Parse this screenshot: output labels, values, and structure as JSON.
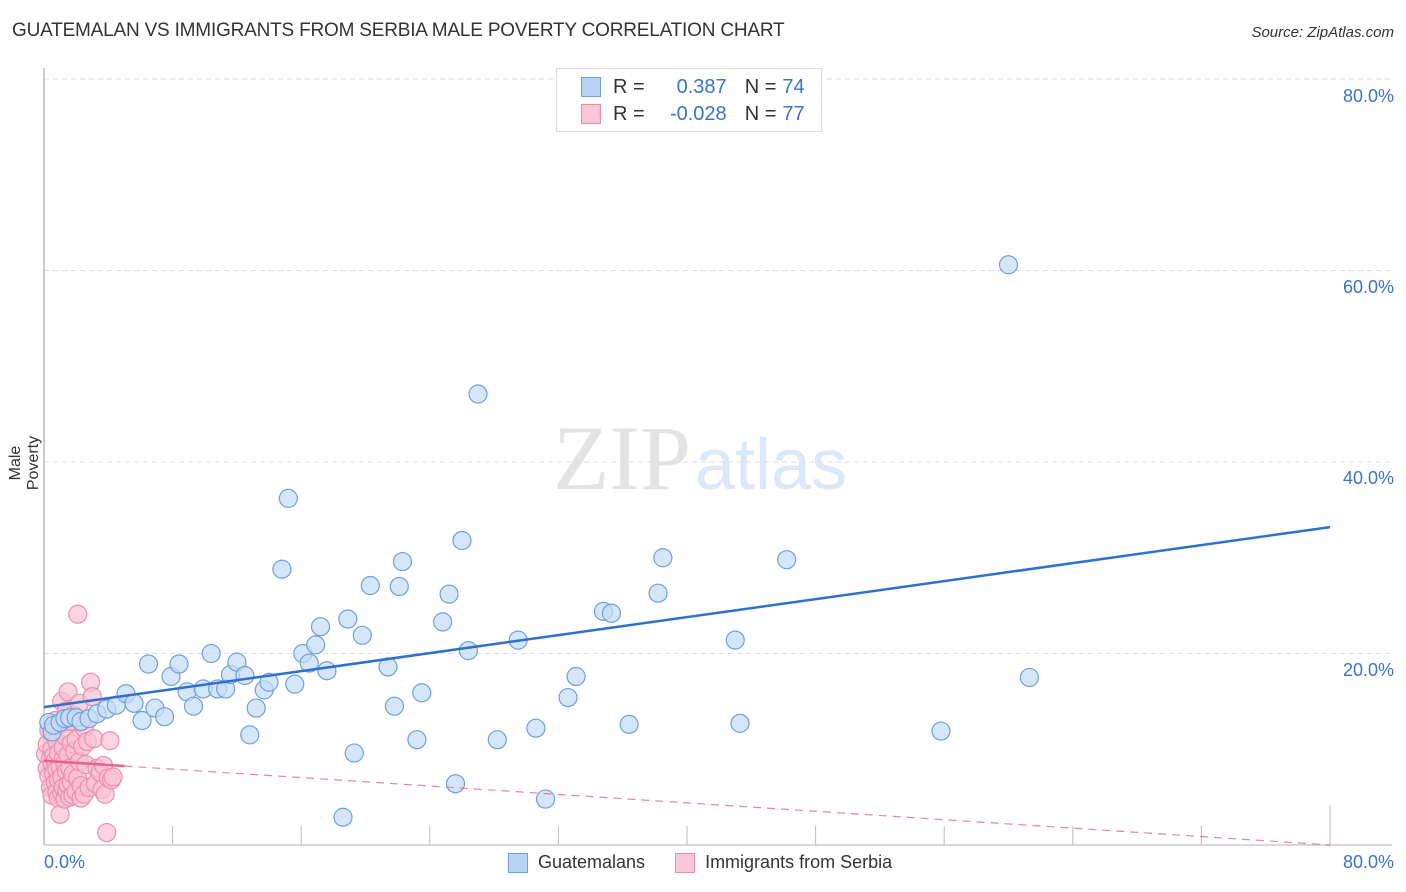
{
  "header": {
    "title": "GUATEMALAN VS IMMIGRANTS FROM SERBIA MALE POVERTY CORRELATION CHART",
    "source": "Source: ZipAtlas.com"
  },
  "watermark": {
    "zip": "ZIP",
    "atlas": "atlas"
  },
  "legend_top": {
    "rows": [
      {
        "r_label": "R =",
        "r_value": "0.387",
        "n_label": "N =",
        "n_value": "74",
        "color": "#b9d3f5",
        "border": "#6f9fde"
      },
      {
        "r_label": "R =",
        "r_value": "-0.028",
        "n_label": "N =",
        "n_value": "77",
        "color": "#fbc6d6",
        "border": "#e98fac"
      }
    ]
  },
  "legend_bottom": [
    {
      "label": "Guatemalans",
      "color": "#b9d3f5",
      "border": "#6f9fde"
    },
    {
      "label": "Immigrants from Serbia",
      "color": "#fbc6d6",
      "border": "#e98fac"
    }
  ],
  "axes": {
    "y_title": "Male Poverty",
    "y_ticks": [
      "80.0%",
      "60.0%",
      "40.0%",
      "20.0%"
    ],
    "x_min_label": "0.0%",
    "x_max_label": "80.0%"
  },
  "colors": {
    "blue_fill": "#c5dbf6",
    "blue_stroke": "#6f9fde",
    "blue_line": "#2e6fd2",
    "pink_fill": "#f9c2d3",
    "pink_stroke": "#ea8fae",
    "pink_line": "#e8608d",
    "axis_label": "#3b73c8",
    "grid": "#dddddd"
  },
  "chart_data": {
    "type": "scatter",
    "title": "GUATEMALAN VS IMMIGRANTS FROM SERBIA MALE POVERTY CORRELATION CHART",
    "xlabel": "",
    "ylabel": "Male Poverty",
    "xlim": [
      0,
      80
    ],
    "ylim": [
      0,
      80
    ],
    "x_tick_labels": [
      "0.0%",
      "80.0%"
    ],
    "y_tick_labels": [
      "20.0%",
      "40.0%",
      "60.0%",
      "80.0%"
    ],
    "grid": "horizontal dashed",
    "legend_position": "bottom",
    "series": [
      {
        "name": "Guatemalans",
        "R": 0.387,
        "N": 74,
        "trend": {
          "x": [
            0,
            80
          ],
          "y": [
            14.4,
            33.2
          ]
        },
        "points": [
          [
            0.3,
            12.8
          ],
          [
            0.5,
            11.8
          ],
          [
            0.6,
            12.5
          ],
          [
            1.0,
            12.8
          ],
          [
            1.3,
            13.2
          ],
          [
            1.6,
            13.3
          ],
          [
            2.0,
            13.3
          ],
          [
            2.3,
            12.9
          ],
          [
            2.8,
            13.2
          ],
          [
            3.3,
            13.7
          ],
          [
            3.9,
            14.2
          ],
          [
            4.5,
            14.6
          ],
          [
            5.1,
            15.8
          ],
          [
            5.6,
            14.8
          ],
          [
            6.1,
            13.0
          ],
          [
            6.5,
            18.9
          ],
          [
            6.9,
            14.3
          ],
          [
            7.5,
            13.4
          ],
          [
            7.9,
            17.6
          ],
          [
            8.4,
            18.9
          ],
          [
            8.9,
            16.0
          ],
          [
            9.3,
            14.5
          ],
          [
            9.9,
            16.3
          ],
          [
            10.4,
            20.0
          ],
          [
            10.8,
            16.3
          ],
          [
            11.3,
            16.3
          ],
          [
            11.6,
            17.8
          ],
          [
            12.0,
            19.1
          ],
          [
            12.5,
            17.7
          ],
          [
            12.8,
            11.5
          ],
          [
            13.2,
            14.3
          ],
          [
            13.7,
            16.2
          ],
          [
            14.0,
            17.0
          ],
          [
            14.8,
            28.8
          ],
          [
            15.2,
            36.2
          ],
          [
            15.6,
            16.8
          ],
          [
            16.1,
            20.0
          ],
          [
            16.5,
            19.0
          ],
          [
            16.9,
            20.9
          ],
          [
            17.2,
            22.8
          ],
          [
            17.6,
            18.2
          ],
          [
            18.6,
            2.9
          ],
          [
            18.9,
            23.6
          ],
          [
            19.3,
            9.6
          ],
          [
            19.8,
            21.9
          ],
          [
            20.3,
            27.1
          ],
          [
            21.4,
            18.6
          ],
          [
            21.8,
            14.5
          ],
          [
            22.1,
            27.0
          ],
          [
            22.3,
            29.6
          ],
          [
            23.2,
            11.0
          ],
          [
            23.5,
            15.9
          ],
          [
            24.8,
            23.3
          ],
          [
            25.2,
            26.2
          ],
          [
            25.6,
            6.4
          ],
          [
            26.0,
            31.8
          ],
          [
            26.4,
            20.3
          ],
          [
            27.0,
            47.1
          ],
          [
            28.2,
            11.0
          ],
          [
            29.5,
            21.4
          ],
          [
            30.6,
            12.2
          ],
          [
            31.2,
            4.8
          ],
          [
            32.6,
            15.4
          ],
          [
            33.1,
            17.6
          ],
          [
            34.8,
            24.4
          ],
          [
            35.3,
            24.2
          ],
          [
            36.4,
            12.6
          ],
          [
            38.2,
            26.3
          ],
          [
            38.5,
            30.0
          ],
          [
            43.0,
            21.4
          ],
          [
            43.3,
            12.7
          ],
          [
            46.2,
            29.8
          ],
          [
            55.8,
            11.9
          ],
          [
            60.0,
            60.6
          ],
          [
            61.3,
            17.5
          ]
        ]
      },
      {
        "name": "Immigrants from Serbia",
        "R": -0.028,
        "N": 77,
        "trend": {
          "x": [
            0,
            80
          ],
          "y": [
            8.8,
            0.0
          ],
          "solid_until_x": 5
        },
        "points": [
          [
            0.1,
            9.5
          ],
          [
            0.2,
            8.0
          ],
          [
            0.2,
            10.5
          ],
          [
            0.3,
            12.0
          ],
          [
            0.3,
            7.2
          ],
          [
            0.4,
            9.0
          ],
          [
            0.4,
            6.0
          ],
          [
            0.5,
            8.5
          ],
          [
            0.5,
            10.0
          ],
          [
            0.5,
            5.2
          ],
          [
            0.6,
            11.5
          ],
          [
            0.6,
            7.5
          ],
          [
            0.6,
            9.3
          ],
          [
            0.7,
            6.5
          ],
          [
            0.7,
            8.8
          ],
          [
            0.7,
            13.0
          ],
          [
            0.8,
            5.5
          ],
          [
            0.8,
            7.9
          ],
          [
            0.8,
            10.8
          ],
          [
            0.9,
            4.9
          ],
          [
            0.9,
            9.6
          ],
          [
            0.9,
            6.8
          ],
          [
            1.0,
            8.2
          ],
          [
            1.0,
            3.2
          ],
          [
            1.0,
            12.6
          ],
          [
            1.1,
            5.4
          ],
          [
            1.1,
            7.1
          ],
          [
            1.1,
            15.0
          ],
          [
            1.2,
            9.0
          ],
          [
            1.2,
            6.0
          ],
          [
            1.2,
            10.2
          ],
          [
            1.3,
            4.8
          ],
          [
            1.3,
            8.5
          ],
          [
            1.3,
            11.4
          ],
          [
            1.4,
            5.7
          ],
          [
            1.4,
            7.7
          ],
          [
            1.4,
            14.0
          ],
          [
            1.5,
            6.3
          ],
          [
            1.5,
            9.4
          ],
          [
            1.5,
            16.0
          ],
          [
            1.6,
            5.0
          ],
          [
            1.6,
            8.0
          ],
          [
            1.6,
            12.9
          ],
          [
            1.7,
            6.6
          ],
          [
            1.7,
            10.6
          ],
          [
            1.8,
            5.2
          ],
          [
            1.8,
            7.4
          ],
          [
            1.9,
            9.8
          ],
          [
            1.9,
            13.5
          ],
          [
            2.0,
            5.6
          ],
          [
            2.0,
            11.0
          ],
          [
            2.1,
            7.0
          ],
          [
            2.1,
            24.1
          ],
          [
            2.2,
            8.7
          ],
          [
            2.2,
            14.8
          ],
          [
            2.3,
            4.9
          ],
          [
            2.3,
            6.2
          ],
          [
            2.4,
            10.3
          ],
          [
            2.5,
            12.2
          ],
          [
            2.5,
            5.3
          ],
          [
            2.6,
            8.4
          ],
          [
            2.7,
            10.8
          ],
          [
            2.8,
            6.0
          ],
          [
            2.9,
            17.0
          ],
          [
            3.0,
            15.5
          ],
          [
            3.1,
            11.1
          ],
          [
            3.2,
            6.4
          ],
          [
            3.3,
            8.0
          ],
          [
            3.5,
            7.6
          ],
          [
            3.6,
            5.8
          ],
          [
            3.7,
            8.3
          ],
          [
            3.8,
            5.3
          ],
          [
            3.9,
            1.3
          ],
          [
            4.0,
            7.0
          ],
          [
            4.2,
            6.8
          ],
          [
            4.3,
            7.1
          ],
          [
            4.1,
            10.9
          ]
        ]
      }
    ]
  }
}
